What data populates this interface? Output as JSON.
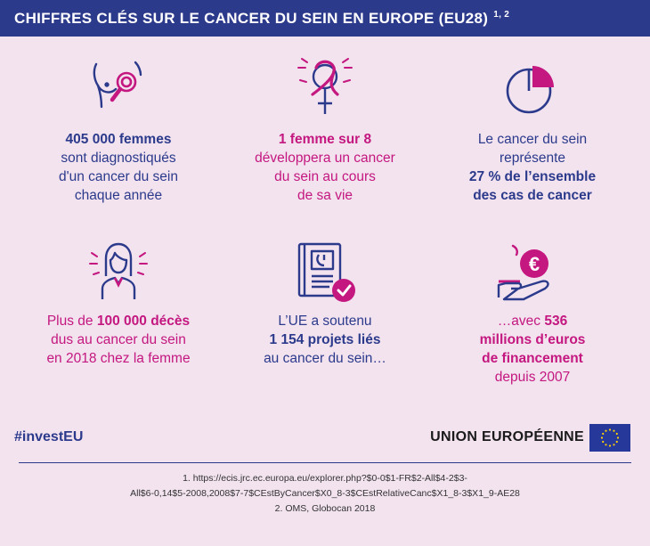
{
  "header": {
    "title": "CHIFFRES CLÉS SUR LE CANCER DU SEIN EN EUROPE (EU28)",
    "superscript": "1, 2"
  },
  "facts": [
    {
      "icon": "breast-examination-icon",
      "bold": "405 000 femmes",
      "lines": [
        "sont diagnostiqués",
        "d'un cancer du sein",
        "chaque année"
      ]
    },
    {
      "icon": "female-ribbon-icon",
      "bold": "1 femme sur 8",
      "lines": [
        "développera un cancer",
        "du sein au cours",
        "de sa vie"
      ]
    },
    {
      "icon": "pie-chart-icon",
      "lines_before": [
        "Le cancer du sein",
        "représente"
      ],
      "bold_lines": [
        "27 % de l’ensemble",
        "des cas de cancer"
      ]
    },
    {
      "icon": "woman-portrait-icon",
      "prefix": "Plus de ",
      "bold": "100 000 décès",
      "lines": [
        "dus au cancer du sein",
        "en 2018 chez la femme"
      ]
    },
    {
      "icon": "research-document-icon",
      "lines_before": [
        "L’UE a soutenu"
      ],
      "bold": "1 154 projets liés",
      "lines": [
        "au cancer du sein…"
      ]
    },
    {
      "icon": "euro-coin-hand-icon",
      "prefix": "…avec ",
      "bold": "536",
      "bold_lines": [
        "millions d’euros",
        "de financement"
      ],
      "lines": [
        "depuis 2007"
      ]
    }
  ],
  "footer": {
    "hashtag": "#investEU",
    "eu_label": "UNION EUROPÉENNE",
    "notes": [
      "1. https://ecis.jrc.ec.europa.eu/explorer.php?$0-0$1-FR$2-All$4-2$3-",
      "All$6-0,14$5-2008,2008$7-7$CEstByCancer$X0_8-3$CEstRelativeCanc$X1_8-3$X1_9-AE28",
      "2. OMS, Globocan 2018"
    ]
  },
  "colors": {
    "navy": "#2c3a8c",
    "magenta": "#c4177f",
    "background": "#f2e3ef"
  }
}
